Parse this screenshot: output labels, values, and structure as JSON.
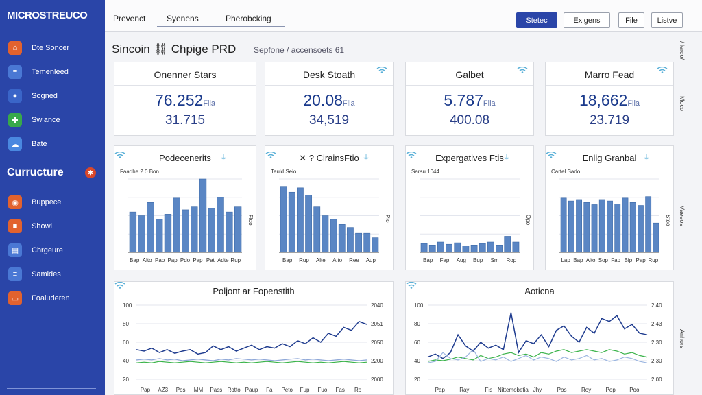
{
  "sidebar": {
    "brand": "MICROSTREUCO",
    "items": [
      {
        "label": "Dte Soncer",
        "icon": "home-icon",
        "color": "#e2622e"
      },
      {
        "label": "Temenleed",
        "icon": "layers-icon",
        "color": "#4a78d4"
      },
      {
        "label": "Sogned",
        "icon": "user-icon",
        "color": "#3a65c8"
      },
      {
        "label": "Swiance",
        "icon": "plus-icon",
        "color": "#38a84a"
      },
      {
        "label": "Bate",
        "icon": "cloud-icon",
        "color": "#4a88e0"
      }
    ],
    "section_title": "Curructure",
    "section_items": [
      {
        "label": "Buppece",
        "icon": "globe-icon",
        "color": "#e2622e"
      },
      {
        "label": "Showl",
        "icon": "box-icon",
        "color": "#e2622e"
      },
      {
        "label": "Chrgeure",
        "icon": "chart-icon",
        "color": "#4a78d4"
      },
      {
        "label": "Samides",
        "icon": "layers-icon",
        "color": "#4a78d4"
      },
      {
        "label": "Foaluderen",
        "icon": "folder-icon",
        "color": "#e2622e"
      }
    ]
  },
  "topbar": {
    "tabs": [
      "Prevenct",
      "Syenens",
      "Pherobcking"
    ],
    "buttons": [
      "Stetec",
      "Exigens",
      "File",
      "Listve"
    ]
  },
  "page": {
    "title": "Sincoin ⛓ Chpige PRD",
    "subtitle": "Sepfone / accensoets 61"
  },
  "rail": [
    "/ lerco/",
    "Moco",
    "Vaeeos",
    "Anhors"
  ],
  "kpis": [
    {
      "title": "Onenner Stars",
      "value": "76.252",
      "unit": "Flia",
      "sub": "31.715"
    },
    {
      "title": "Desk Stoath",
      "value": "20.08",
      "unit": "Flia",
      "sub": "34,519"
    },
    {
      "title": "Galbet",
      "value": "5.787",
      "unit": "Flia",
      "sub": "400.08"
    },
    {
      "title": "Marro Fead",
      "value": "18,662",
      "unit": "Flia",
      "sub": "23.719"
    }
  ],
  "minis": [
    {
      "title": "Podecenerits",
      "legend": "Faadhe 2.0 Bon",
      "ylabel": "Floo",
      "xticks": [
        "Bap",
        "Alto",
        "Pap",
        "Pap",
        "Pdo",
        "Pap",
        "Pat",
        "Adte",
        "Rup"
      ],
      "values": [
        55,
        50,
        68,
        45,
        52,
        74,
        58,
        62,
        100,
        60,
        75,
        55,
        62
      ]
    },
    {
      "title": "✕ ? CirainsFtio",
      "legend": "Teuld Seio",
      "ylabel": "Plo",
      "xticks": [
        "Bap",
        "Rup",
        "Alte",
        "Alto",
        "Ree",
        "Aup"
      ],
      "values": [
        90,
        82,
        88,
        78,
        62,
        50,
        45,
        38,
        34,
        26,
        26,
        20
      ]
    },
    {
      "title": "Expergatives Ftis",
      "legend": "Sarsu 1044",
      "ylabel": "Opo",
      "xticks": [
        "Bap",
        "Fap",
        "Aug",
        "Bup",
        "Sm",
        "Rop"
      ],
      "values": [
        12,
        10,
        14,
        11,
        13,
        9,
        10,
        12,
        14,
        10,
        22,
        14
      ]
    },
    {
      "title": "Enlig Granbal",
      "legend": "Cartel Sado",
      "ylabel": "Stoo",
      "xticks": [
        "Lap",
        "Bap",
        "Alto",
        "Sop",
        "Fap",
        "Bip",
        "Pap",
        "Rup"
      ],
      "values": [
        74,
        70,
        72,
        68,
        65,
        72,
        70,
        66,
        74,
        68,
        64,
        76,
        40
      ]
    }
  ],
  "bigs": [
    {
      "title": "Poljont ar Fopenstith",
      "yleft": [
        "100",
        "80",
        "60",
        "40",
        "20"
      ],
      "yright": [
        "2040",
        "2051",
        "2050",
        "2200",
        "2000"
      ],
      "xticks": [
        "Pap",
        "AZ3",
        "Pos",
        "MM",
        "Pass",
        "Rotto",
        "Paup",
        "Fa",
        "Peto",
        "Fup",
        "Fuo",
        "Fas",
        "Ro"
      ],
      "series": [
        {
          "name": "",
          "color": "#1f3c8f",
          "values": [
            40,
            38,
            42,
            36,
            40,
            35,
            38,
            40,
            34,
            36,
            45,
            40,
            44,
            38,
            42,
            46,
            40,
            44,
            42,
            48,
            44,
            52,
            48,
            56,
            50,
            62,
            58,
            70,
            66,
            78,
            74
          ]
        },
        {
          "name": "",
          "color": "#3bb34a",
          "values": [
            22,
            23,
            22,
            24,
            23,
            22,
            23,
            24,
            23,
            22,
            23,
            24,
            23,
            22,
            23,
            22,
            23,
            24,
            23,
            22,
            23,
            24,
            23,
            22,
            23,
            22,
            23,
            24,
            23,
            22,
            23
          ]
        },
        {
          "name": "",
          "color": "#8fa8d8",
          "values": [
            26,
            27,
            26,
            28,
            26,
            27,
            25,
            26,
            27,
            26,
            25,
            27,
            26,
            28,
            27,
            26,
            27,
            26,
            25,
            26,
            27,
            28,
            26,
            27,
            26,
            25,
            26,
            27,
            26,
            25,
            26
          ]
        }
      ]
    },
    {
      "title": "Aoticna",
      "yleft": [
        "100",
        "80",
        "60",
        "40",
        "20"
      ],
      "yright": [
        "2 40",
        "2 43",
        "2 30",
        "2 30",
        "2 00"
      ],
      "xticks": [
        "Pap",
        "Ray",
        "Fis",
        "Nittemobetia",
        "Jhy",
        "Pos",
        "Roy",
        "Pop",
        "Pool"
      ],
      "series": [
        {
          "name": "",
          "color": "#1f3c8f",
          "values": [
            30,
            34,
            28,
            36,
            60,
            45,
            38,
            50,
            42,
            46,
            40,
            90,
            36,
            52,
            48,
            60,
            44,
            66,
            72,
            58,
            50,
            70,
            62,
            82,
            78,
            86,
            68,
            74,
            62,
            60
          ]
        },
        {
          "name": "",
          "color": "#3bb34a",
          "values": [
            24,
            26,
            25,
            27,
            30,
            28,
            26,
            32,
            28,
            30,
            34,
            36,
            32,
            34,
            30,
            36,
            34,
            38,
            40,
            36,
            38,
            40,
            38,
            36,
            40,
            38,
            34,
            36,
            32,
            30
          ]
        },
        {
          "name": "",
          "color": "#9cb6e0",
          "values": [
            22,
            24,
            36,
            28,
            26,
            30,
            40,
            24,
            28,
            26,
            30,
            24,
            28,
            32,
            26,
            30,
            28,
            24,
            30,
            26,
            28,
            32,
            26,
            28,
            24,
            26,
            30,
            28,
            24,
            22
          ]
        }
      ]
    }
  ]
}
